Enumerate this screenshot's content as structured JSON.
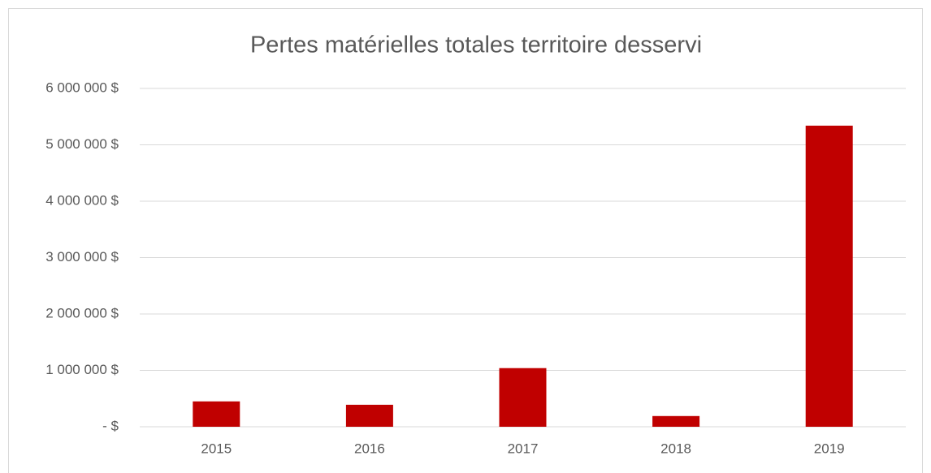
{
  "chart_data": {
    "type": "bar",
    "title": "Pertes matérielles totales territoire desservi",
    "categories": [
      "2015",
      "2016",
      "2017",
      "2018",
      "2019"
    ],
    "values": [
      450000,
      390000,
      1040000,
      190000,
      5340000
    ],
    "color": "#c00000",
    "ylim": [
      0,
      6000000
    ],
    "yticks": [
      {
        "value": 0,
        "label": "-   $"
      },
      {
        "value": 1000000,
        "label": "1 000 000 $"
      },
      {
        "value": 2000000,
        "label": "2 000 000 $"
      },
      {
        "value": 3000000,
        "label": "3 000 000 $"
      },
      {
        "value": 4000000,
        "label": "4 000 000 $"
      },
      {
        "value": 5000000,
        "label": "5 000 000 $"
      },
      {
        "value": 6000000,
        "label": "6 000 000 $"
      }
    ],
    "grid": true
  }
}
